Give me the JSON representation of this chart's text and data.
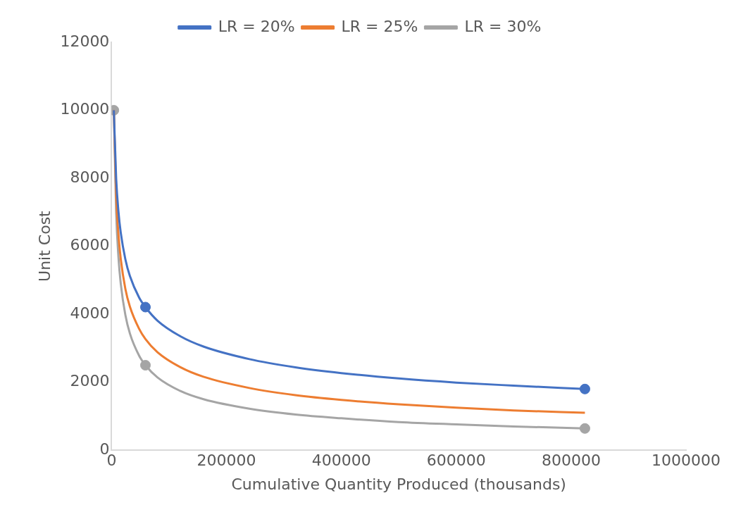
{
  "chart_data": {
    "type": "line",
    "xlabel": "Cumulative Quantity Produced (thousands)",
    "ylabel": "Unit Cost",
    "x": [
      4000,
      8000,
      12000,
      16000,
      24000,
      32000,
      48000,
      59000,
      80000,
      120000,
      160000,
      240000,
      320000,
      400000,
      500000,
      600000,
      700000,
      824000
    ],
    "series": [
      {
        "name": "LR = 20%",
        "color": "#4472c4",
        "marker": "none",
        "values": [
          10000,
          8000,
          7020,
          6400,
          5620,
          5120,
          4490,
          4210,
          3810,
          3350,
          3050,
          2680,
          2440,
          2270,
          2110,
          1990,
          1900,
          1800
        ]
      },
      {
        "name": "LR = 25%",
        "color": "#ed7d31",
        "marker": "none",
        "values": [
          10000,
          7500,
          6340,
          5630,
          4750,
          4220,
          3570,
          3270,
          2880,
          2440,
          2160,
          1830,
          1620,
          1480,
          1350,
          1250,
          1170,
          1100
        ]
      },
      {
        "name": "LR = 30%",
        "color": "#a5a5a5",
        "marker": "none",
        "values": [
          10000,
          7000,
          5680,
          4900,
          3980,
          3430,
          2780,
          2500,
          2140,
          1740,
          1500,
          1220,
          1050,
          940,
          830,
          760,
          700,
          640
        ]
      },
      {
        "type": "scatter",
        "color": "#4472c4",
        "marker": "circle",
        "x": [
          59000,
          824000
        ],
        "values": [
          4210,
          1800
        ]
      },
      {
        "type": "scatter",
        "color": "#a5a5a5",
        "marker": "circle",
        "x": [
          4000,
          59000,
          824000
        ],
        "values": [
          10000,
          2500,
          640
        ]
      }
    ],
    "xlim": [
      0,
      1000000
    ],
    "xticks": [
      0,
      200000,
      400000,
      600000,
      800000,
      1000000
    ],
    "ylim": [
      0,
      12000
    ],
    "yticks": [
      0,
      2000,
      4000,
      6000,
      8000,
      10000,
      12000
    ],
    "grid": false,
    "legend": "top"
  }
}
